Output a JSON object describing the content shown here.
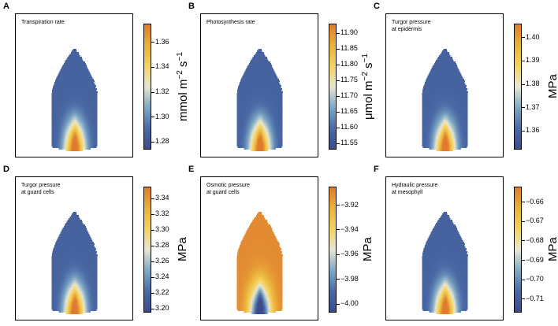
{
  "figure": {
    "colormap": [
      "#3b4c8c",
      "#4a6aa6",
      "#7fa9c4",
      "#e8e6d2",
      "#f4d35e",
      "#eab23a",
      "#e07a2e"
    ]
  },
  "chart_data": [
    {
      "letter": "A",
      "type": "heatmap",
      "title_lines": [
        "Transpiration rate"
      ],
      "pattern": "base-warm",
      "colorbar": {
        "label_parts": [
          "mmol m",
          "−2",
          " s",
          "−1"
        ],
        "range": [
          1.274,
          1.375
        ],
        "ticks": [
          1.28,
          1.3,
          1.32,
          1.34,
          1.36
        ],
        "tick_labels": [
          "1.28",
          "1.30",
          "1.32",
          "1.34",
          "1.36"
        ]
      }
    },
    {
      "letter": "B",
      "type": "heatmap",
      "title_lines": [
        "Photosynthesis rate"
      ],
      "pattern": "base-warm",
      "colorbar": {
        "label_parts": [
          "μmol m",
          "−2",
          " s",
          "−1"
        ],
        "range": [
          11.53,
          11.93
        ],
        "ticks": [
          11.55,
          11.6,
          11.65,
          11.7,
          11.75,
          11.8,
          11.85,
          11.9
        ],
        "tick_labels": [
          "11.55",
          "11.60",
          "11.65",
          "11.70",
          "11.75",
          "11.80",
          "11.85",
          "11.90"
        ]
      }
    },
    {
      "letter": "C",
      "type": "heatmap",
      "title_lines": [
        "Turgor pressure",
        "at epidermis"
      ],
      "pattern": "base-warm",
      "colorbar": {
        "label_parts": [
          "MPa"
        ],
        "range": [
          1.352,
          1.406
        ],
        "ticks": [
          1.36,
          1.37,
          1.38,
          1.39,
          1.4
        ],
        "tick_labels": [
          "1.36",
          "1.37",
          "1.38",
          "1.39",
          "1.40"
        ]
      }
    },
    {
      "letter": "D",
      "type": "heatmap",
      "title_lines": [
        "Turgor pressure",
        "at guard cells"
      ],
      "pattern": "base-warm",
      "colorbar": {
        "label_parts": [
          "MPa"
        ],
        "range": [
          3.195,
          3.355
        ],
        "ticks": [
          3.2,
          3.22,
          3.24,
          3.26,
          3.28,
          3.3,
          3.32,
          3.34
        ],
        "tick_labels": [
          "3.20",
          "3.22",
          "3.24",
          "3.26",
          "3.28",
          "3.30",
          "3.32",
          "3.34"
        ]
      }
    },
    {
      "letter": "E",
      "type": "heatmap",
      "title_lines": [
        "Osmotic pressure",
        "at guard cells"
      ],
      "pattern": "tip-warm",
      "colorbar": {
        "label_parts": [
          "MPa"
        ],
        "range": [
          -4.007,
          -3.905
        ],
        "ticks": [
          -4.0,
          -3.98,
          -3.96,
          -3.94,
          -3.92
        ],
        "tick_labels": [
          "−4.00",
          "−3.98",
          "−3.96",
          "−3.94",
          "−3.92"
        ]
      }
    },
    {
      "letter": "F",
      "type": "heatmap",
      "title_lines": [
        "Hydraulic pressure",
        "at mesophyll"
      ],
      "pattern": "base-warm",
      "colorbar": {
        "label_parts": [
          "MPa"
        ],
        "range": [
          -0.717,
          -0.652
        ],
        "ticks": [
          -0.71,
          -0.7,
          -0.69,
          -0.68,
          -0.67,
          -0.66
        ],
        "tick_labels": [
          "−0.71",
          "−0.70",
          "−0.69",
          "−0.68",
          "−0.67",
          "−0.66"
        ]
      }
    }
  ]
}
